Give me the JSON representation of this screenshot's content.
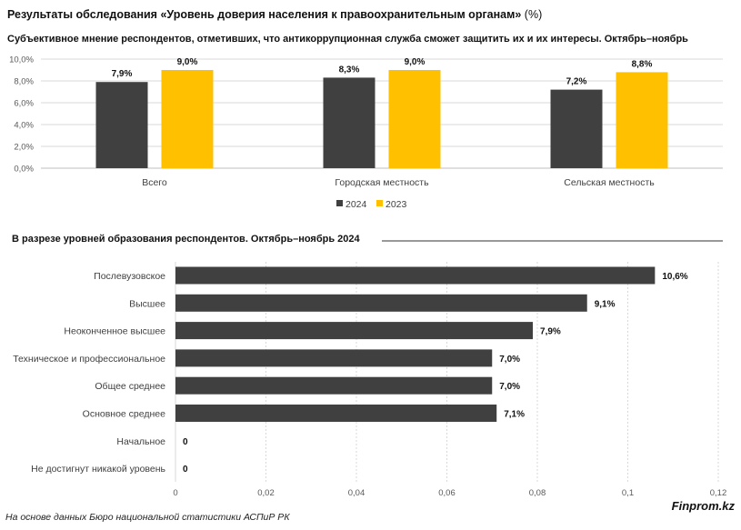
{
  "title": "Результаты обследования «Уровень доверия населения к правоохранительным органам»",
  "title_unit": "(%)",
  "footer": {
    "source": "На основе данных Бюро национальной статистики АСПиР РК",
    "brand": "Finprom.kz"
  },
  "colors": {
    "series_2024": "#404040",
    "series_2023": "#ffc000",
    "bar_education": "#404040",
    "grid": "#d9d9d9",
    "axis_text": "#595959"
  },
  "chart_data": [
    {
      "type": "bar",
      "title": "Субъективное мнение респондентов, отметивших, что антикоррупционная служба сможет защитить их и их интересы. Октябрь–ноябрь",
      "categories": [
        "Всего",
        "Городская местность",
        "Сельская местность"
      ],
      "series": [
        {
          "name": "2024",
          "values": [
            7.9,
            8.3,
            7.2
          ],
          "labels": [
            "7,9%",
            "8,3%",
            "7,2%"
          ]
        },
        {
          "name": "2023",
          "values": [
            9.0,
            9.0,
            8.8
          ],
          "labels": [
            "9,0%",
            "9,0%",
            "8,8%"
          ]
        }
      ],
      "ylim": [
        0,
        10
      ],
      "yticks": [
        "0,0%",
        "2,0%",
        "4,0%",
        "6,0%",
        "8,0%",
        "10,0%"
      ],
      "grid": true,
      "legend_position": "bottom"
    },
    {
      "type": "bar",
      "orientation": "horizontal",
      "title": "В разрезе уровней образования респондентов. Октябрь–ноябрь 2024",
      "categories": [
        "Послевузовское",
        "Высшее",
        "Неоконченное высшее",
        "Техническое и профессиональное",
        "Общее среднее",
        "Основное среднее",
        "Начальное",
        "Не достигнут никакой уровень"
      ],
      "values": [
        0.106,
        0.091,
        0.079,
        0.07,
        0.07,
        0.071,
        0,
        0
      ],
      "labels": [
        "10,6%",
        "9,1%",
        "7,9%",
        "7,0%",
        "7,0%",
        "7,1%",
        "0",
        "0"
      ],
      "xlim": [
        0,
        0.12
      ],
      "xticks": [
        "0",
        "0,02",
        "0,04",
        "0,06",
        "0,08",
        "0,1",
        "0,12"
      ],
      "grid": true
    }
  ]
}
